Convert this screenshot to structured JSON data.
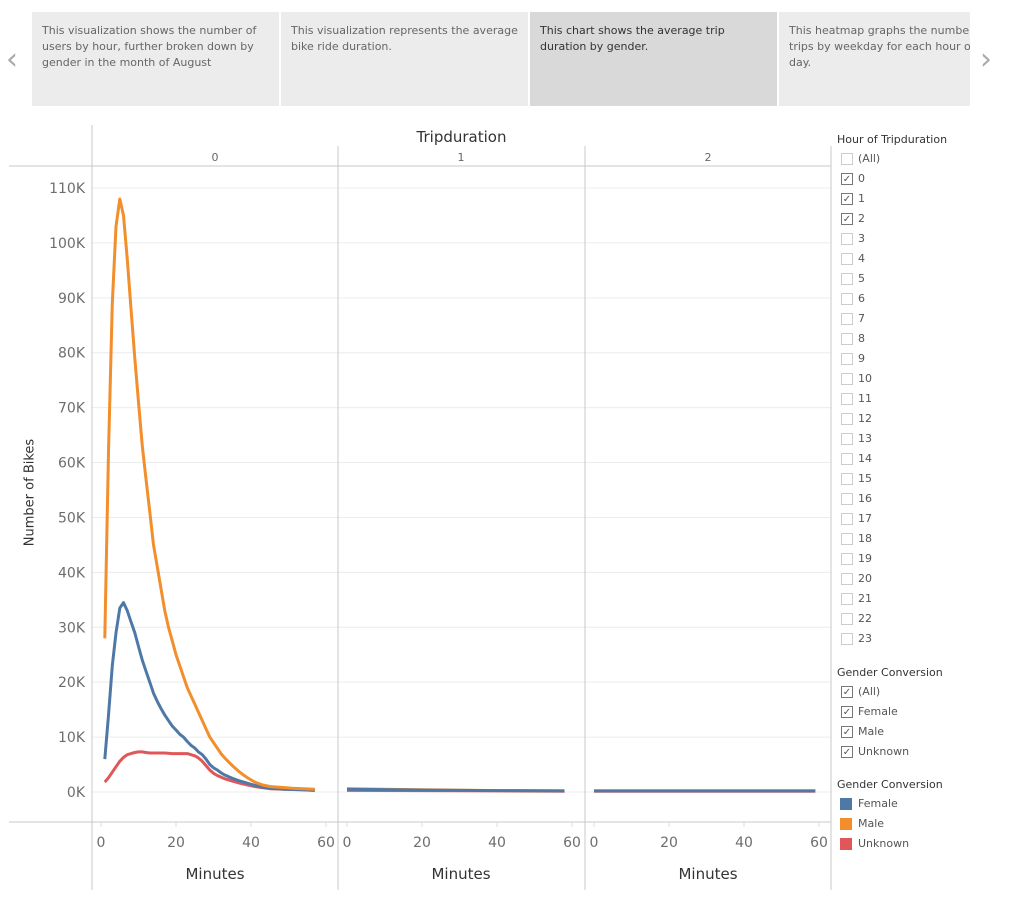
{
  "story": {
    "points": [
      {
        "text": "This visualization shows the number of users by hour, further broken down by gender in the month of August",
        "selected": false
      },
      {
        "text": "This visualization represents the average bike ride duration.",
        "selected": false
      },
      {
        "text": "This chart shows the average trip duration by gender.",
        "selected": true
      },
      {
        "text": "This heatmap graphs the number of trips by weekday for each hour of the day.",
        "selected": false
      }
    ],
    "prev_icon": "chevron-left-icon",
    "next_icon": "chevron-right-icon"
  },
  "filters": {
    "hour_title": "Hour of Tripduration",
    "hours": [
      {
        "label": "(All)",
        "checked": false
      },
      {
        "label": "0",
        "checked": true
      },
      {
        "label": "1",
        "checked": true
      },
      {
        "label": "2",
        "checked": true
      },
      {
        "label": "3",
        "checked": false
      },
      {
        "label": "4",
        "checked": false
      },
      {
        "label": "5",
        "checked": false
      },
      {
        "label": "6",
        "checked": false
      },
      {
        "label": "7",
        "checked": false
      },
      {
        "label": "8",
        "checked": false
      },
      {
        "label": "9",
        "checked": false
      },
      {
        "label": "10",
        "checked": false
      },
      {
        "label": "11",
        "checked": false
      },
      {
        "label": "12",
        "checked": false
      },
      {
        "label": "13",
        "checked": false
      },
      {
        "label": "14",
        "checked": false
      },
      {
        "label": "15",
        "checked": false
      },
      {
        "label": "16",
        "checked": false
      },
      {
        "label": "17",
        "checked": false
      },
      {
        "label": "18",
        "checked": false
      },
      {
        "label": "19",
        "checked": false
      },
      {
        "label": "20",
        "checked": false
      },
      {
        "label": "21",
        "checked": false
      },
      {
        "label": "22",
        "checked": false
      },
      {
        "label": "23",
        "checked": false
      }
    ],
    "gender_title": "Gender Conversion",
    "genders": [
      {
        "label": "(All)",
        "checked": true
      },
      {
        "label": "Female",
        "checked": true
      },
      {
        "label": "Male",
        "checked": true
      },
      {
        "label": "Unknown",
        "checked": true
      }
    ]
  },
  "legend": {
    "title": "Gender Conversion",
    "items": [
      {
        "label": "Female",
        "color": "#4e79a7"
      },
      {
        "label": "Male",
        "color": "#f28e2b"
      },
      {
        "label": "Unknown",
        "color": "#e15759"
      }
    ]
  },
  "chart_data": {
    "type": "line",
    "title": "Tripduration",
    "panel_labels": [
      "0",
      "1",
      "2"
    ],
    "xlabel": "Minutes",
    "ylabel": "Number of Bikes",
    "xlim": [
      0,
      60
    ],
    "xticks": [
      "0",
      "20",
      "40",
      "60"
    ],
    "ylim": [
      -5000,
      115000
    ],
    "yticks": [
      "0K",
      "10K",
      "20K",
      "30K",
      "40K",
      "50K",
      "60K",
      "70K",
      "80K",
      "90K",
      "100K",
      "110K"
    ],
    "grid": true,
    "legend": "right",
    "panels": [
      {
        "panel": "0",
        "series": [
          {
            "name": "Female",
            "x": [
              1,
              2,
              3,
              4,
              5,
              6,
              7,
              8,
              9,
              10,
              11,
              12,
              13,
              14,
              15,
              16,
              17,
              18,
              19,
              20,
              21,
              22,
              23,
              24,
              25,
              26,
              27,
              28,
              29,
              30,
              31,
              32,
              33,
              34,
              35,
              37,
              39,
              41,
              43,
              45,
              47,
              49,
              54,
              57
            ],
            "y": [
              6000,
              14000,
              23000,
              29000,
              33500,
              34500,
              33000,
              31000,
              29000,
              26500,
              24000,
              22000,
              20000,
              18000,
              16500,
              15200,
              14000,
              13000,
              12000,
              11300,
              10500,
              10000,
              9200,
              8500,
              8000,
              7300,
              6800,
              6000,
              5000,
              4400,
              4000,
              3500,
              3100,
              2800,
              2500,
              2000,
              1600,
              1200,
              900,
              700,
              600,
              500,
              400,
              300
            ]
          },
          {
            "name": "Male",
            "x": [
              1,
              2,
              3,
              4,
              5,
              6,
              7,
              8,
              9,
              10,
              11,
              12,
              13,
              14,
              15,
              16,
              17,
              18,
              19,
              20,
              21,
              22,
              23,
              24,
              25,
              26,
              27,
              28,
              29,
              30,
              31,
              32,
              33,
              34,
              35,
              36,
              37,
              38,
              39,
              41,
              43,
              45,
              47,
              49,
              51,
              54,
              57
            ],
            "y": [
              28000,
              62000,
              89000,
              103000,
              108000,
              105000,
              97000,
              88000,
              79000,
              71000,
              63000,
              57000,
              51000,
              45000,
              41000,
              37000,
              33000,
              30000,
              27500,
              25000,
              23000,
              21000,
              19000,
              17500,
              16000,
              14500,
              13000,
              11500,
              10000,
              9000,
              8000,
              7000,
              6200,
              5500,
              4800,
              4200,
              3600,
              3100,
              2600,
              1800,
              1300,
              1000,
              900,
              800,
              700,
              600,
              500
            ]
          },
          {
            "name": "Unknown",
            "x": [
              1,
              2,
              3,
              4,
              5,
              6,
              7,
              8,
              9,
              10,
              11,
              12,
              13,
              15,
              17,
              19,
              21,
              23,
              24,
              25,
              26,
              27,
              28,
              29,
              30,
              31,
              33,
              35,
              37,
              39,
              41,
              43,
              45,
              49,
              54,
              57
            ],
            "y": [
              1800,
              2600,
              3600,
              4600,
              5600,
              6300,
              6800,
              7000,
              7200,
              7300,
              7300,
              7200,
              7100,
              7100,
              7100,
              7000,
              7000,
              7000,
              6800,
              6600,
              6200,
              5600,
              4800,
              4000,
              3400,
              3000,
              2400,
              2000,
              1600,
              1300,
              1000,
              800,
              600,
              500,
              400,
              300
            ]
          }
        ]
      },
      {
        "panel": "1",
        "series": [
          {
            "name": "Female",
            "x": [
              0,
              20,
              40,
              58
            ],
            "y": [
              500,
              350,
              250,
              200
            ]
          },
          {
            "name": "Male",
            "x": [
              0,
              20,
              40,
              58
            ],
            "y": [
              600,
              400,
              250,
              200
            ]
          },
          {
            "name": "Unknown",
            "x": [
              0,
              20,
              40,
              58
            ],
            "y": [
              300,
              250,
              200,
              150
            ]
          }
        ]
      },
      {
        "panel": "2",
        "series": [
          {
            "name": "Female",
            "x": [
              0,
              20,
              40,
              59
            ],
            "y": [
              200,
              200,
              200,
              200
            ]
          },
          {
            "name": "Male",
            "x": [
              0,
              20,
              40,
              59
            ],
            "y": [
              200,
              200,
              200,
              200
            ]
          },
          {
            "name": "Unknown",
            "x": [
              0,
              20,
              40,
              59
            ],
            "y": [
              150,
              150,
              150,
              150
            ]
          }
        ]
      }
    ]
  }
}
